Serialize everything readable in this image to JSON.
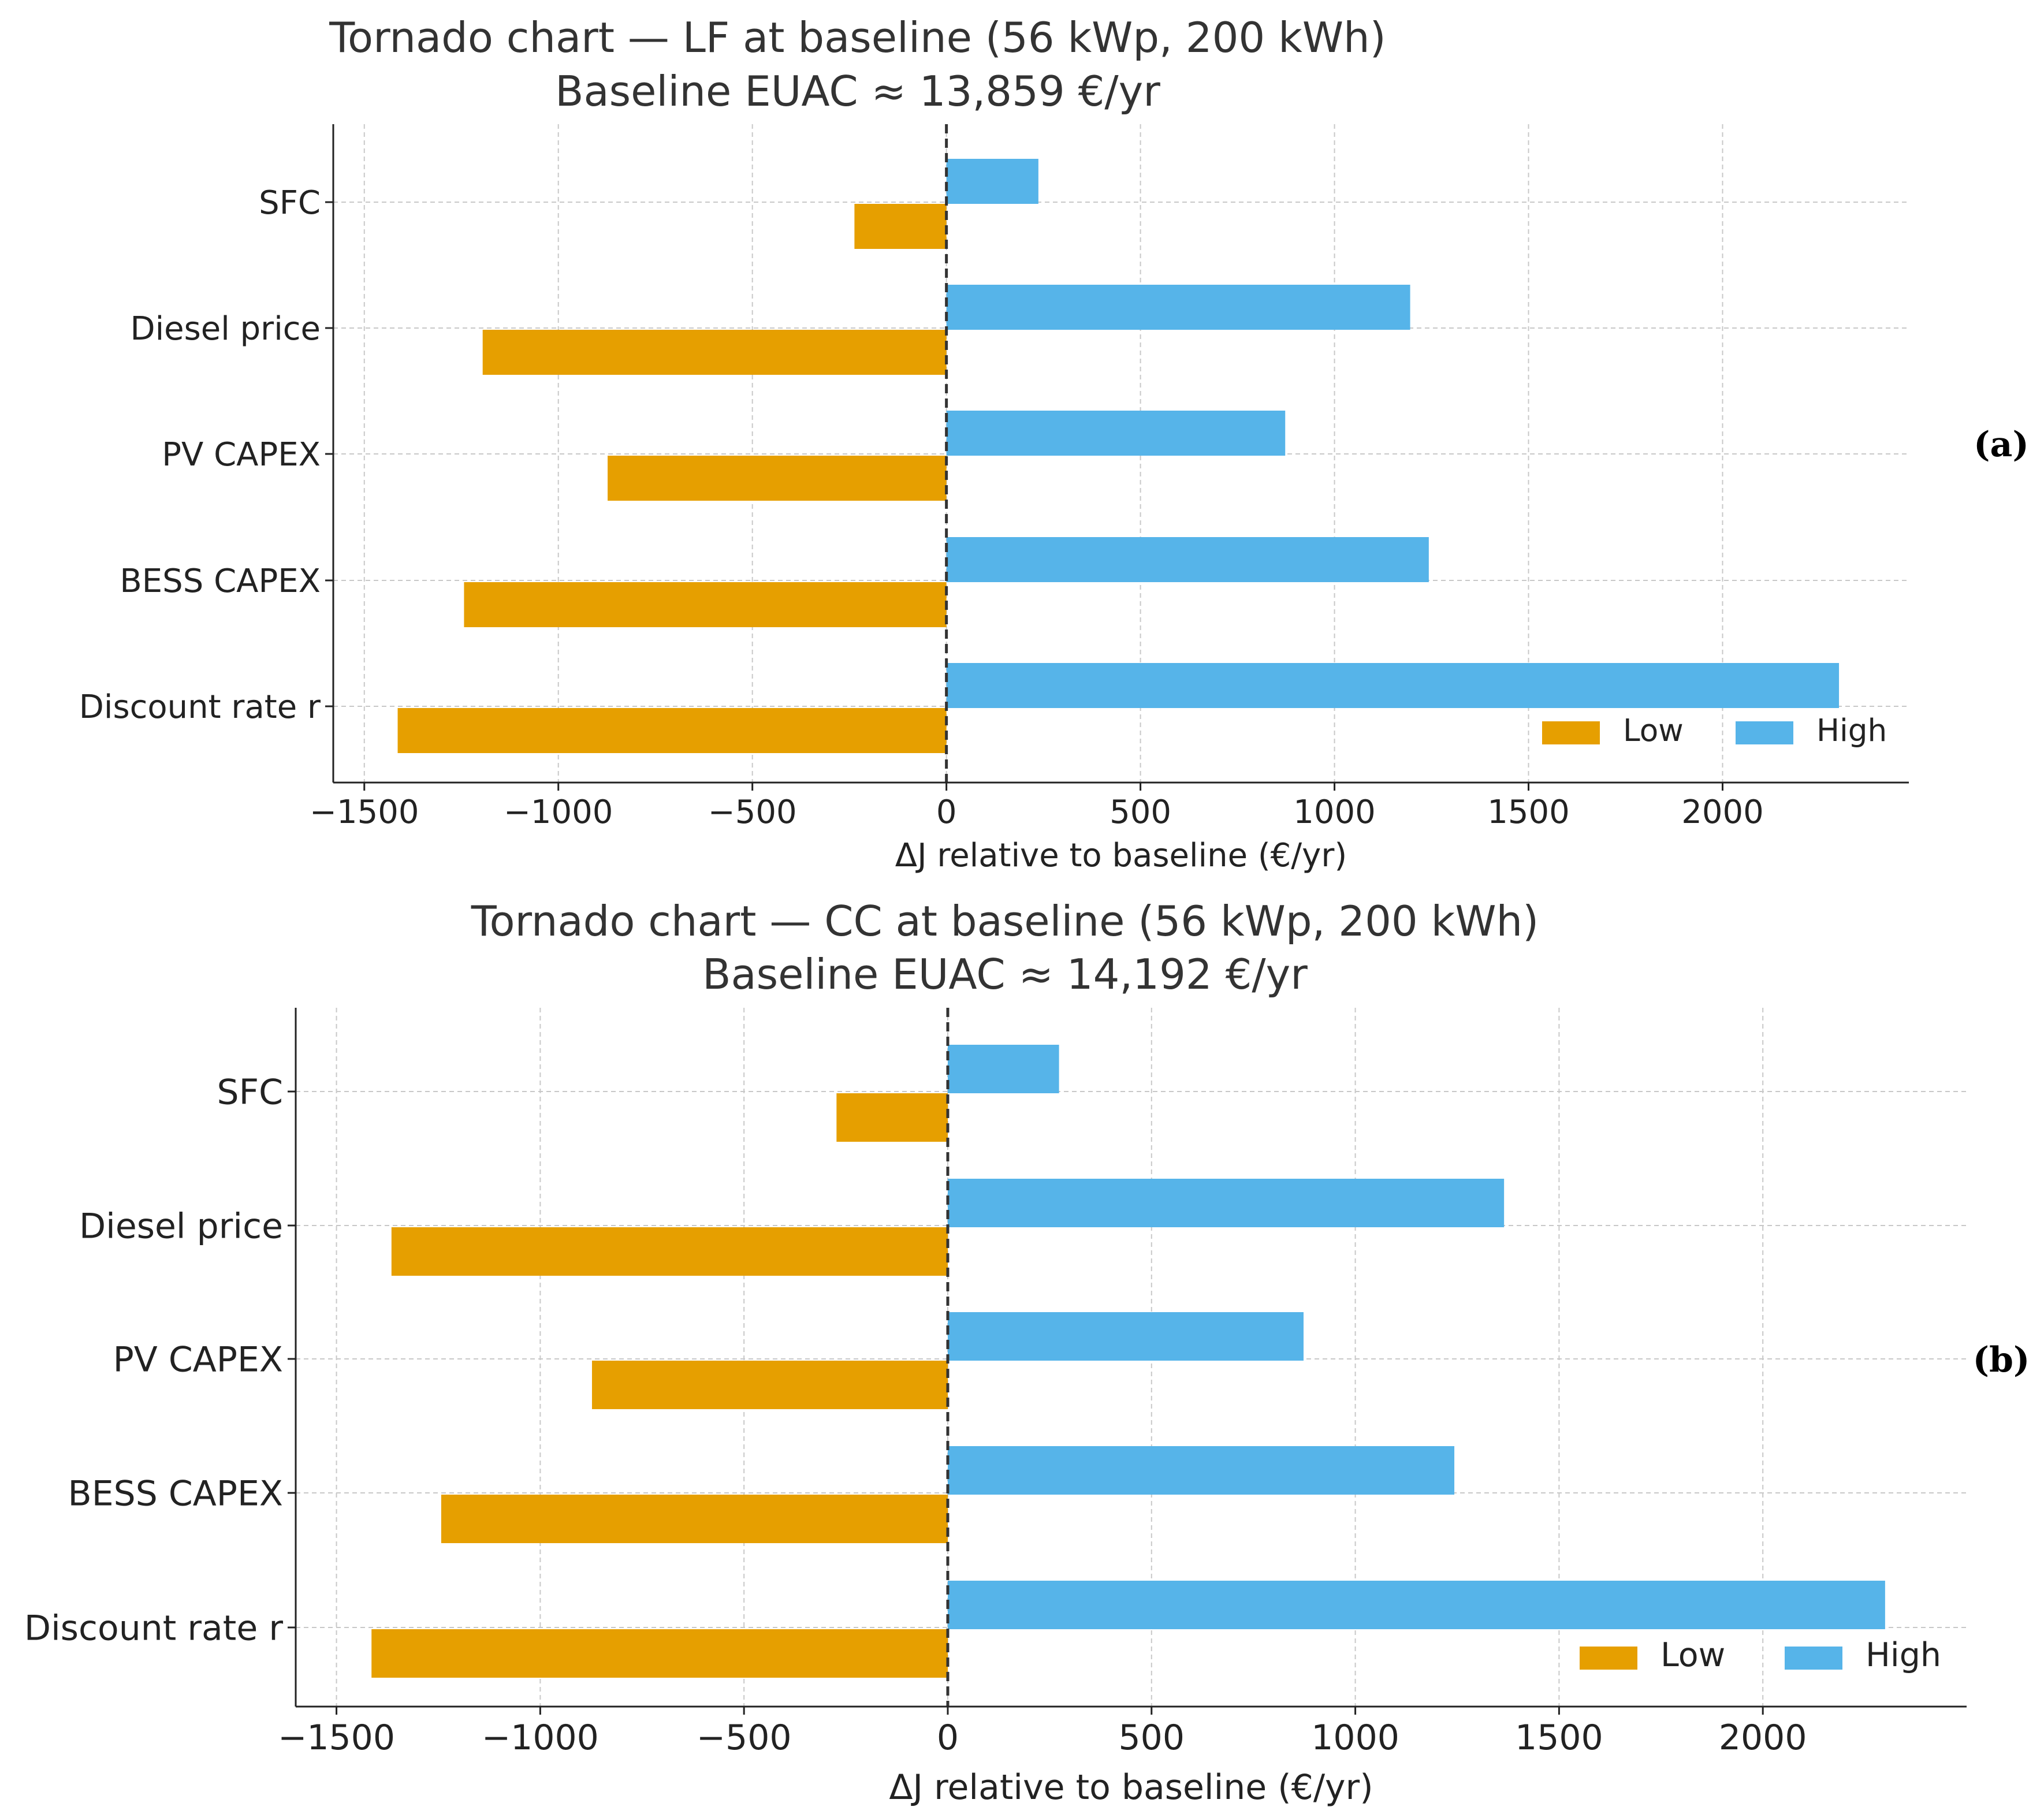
{
  "colors": {
    "low": "#E69F00",
    "high": "#56B4E9",
    "axis": "#222222",
    "grid": "#c8c8c8",
    "baseline": "#333333"
  },
  "chart_data": [
    {
      "type": "bar",
      "orientation": "horizontal",
      "title": "Tornado chart — LF at baseline (56 kWp, 200 kWh)",
      "subtitle": "Baseline EUAC ≈ 13,859 €/yr",
      "panel_label": "(a)",
      "xlabel": "ΔJ relative to baseline (€/yr)",
      "ylabel": "",
      "xlim": [
        -1580,
        2480
      ],
      "xticks": [
        -1500,
        -1000,
        -500,
        0,
        500,
        1000,
        1500,
        2000
      ],
      "xtick_labels": [
        "−1500",
        "−1000",
        "−500",
        "0",
        "500",
        "1000",
        "1500",
        "2000"
      ],
      "categories": [
        "SFC",
        "Diesel price",
        "PV CAPEX",
        "BESS CAPEX",
        "Discount rate r"
      ],
      "series": [
        {
          "name": "Low",
          "values": [
            -237,
            -1195,
            -873,
            -1243,
            -1414
          ]
        },
        {
          "name": "High",
          "values": [
            237,
            1195,
            873,
            1243,
            2300
          ]
        }
      ],
      "legend": [
        "Low",
        "High"
      ],
      "legend_position": "lower-right",
      "grid": true
    },
    {
      "type": "bar",
      "orientation": "horizontal",
      "title": "Tornado chart — CC at baseline (56 kWp, 200 kWh)",
      "subtitle": "Baseline EUAC ≈ 14,192 €/yr",
      "panel_label": "(b)",
      "xlabel": "ΔJ relative to baseline (€/yr)",
      "ylabel": "",
      "xlim": [
        -1600,
        2500
      ],
      "xticks": [
        -1500,
        -1000,
        -500,
        0,
        500,
        1000,
        1500,
        2000
      ],
      "xtick_labels": [
        "−1500",
        "−1000",
        "−500",
        "0",
        "500",
        "1000",
        "1500",
        "2000"
      ],
      "categories": [
        "SFC",
        "Diesel price",
        "PV CAPEX",
        "BESS CAPEX",
        "Discount rate r"
      ],
      "series": [
        {
          "name": "Low",
          "values": [
            -273,
            -1365,
            -873,
            -1243,
            -1414
          ]
        },
        {
          "name": "High",
          "values": [
            273,
            1365,
            873,
            1243,
            2300
          ]
        }
      ],
      "legend": [
        "Low",
        "High"
      ],
      "legend_position": "lower-right",
      "grid": true
    }
  ]
}
